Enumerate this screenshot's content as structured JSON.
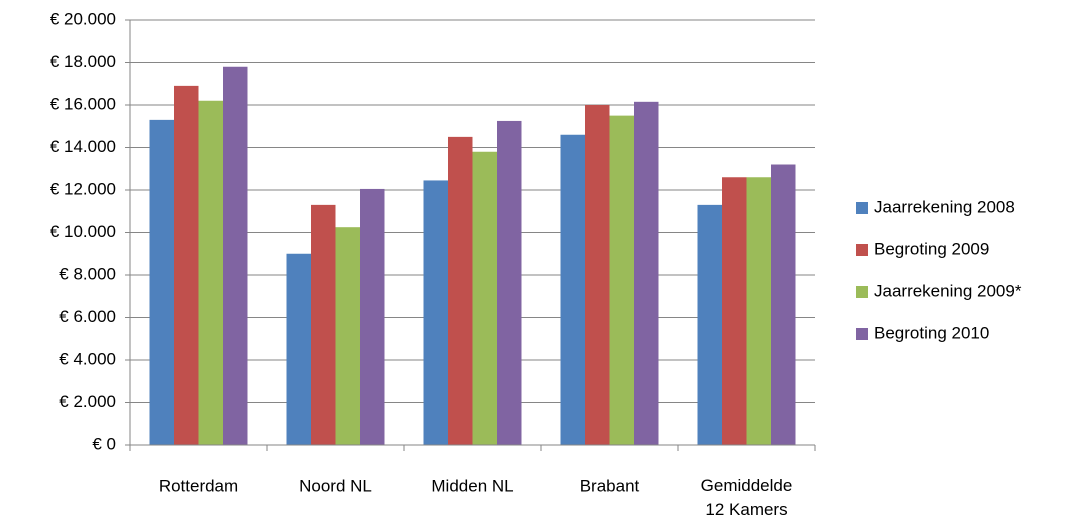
{
  "chart_data": {
    "type": "bar",
    "categories": [
      "Rotterdam",
      "Noord NL",
      "Midden NL",
      "Brabant",
      "Gemiddelde 12 Kamers"
    ],
    "series": [
      {
        "name": "Jaarrekening 2008",
        "color": "#4f81bd",
        "values": [
          15300,
          9000,
          12450,
          14600,
          11300
        ]
      },
      {
        "name": "Begroting 2009",
        "color": "#c0504d",
        "values": [
          16900,
          11300,
          14500,
          16000,
          12600
        ]
      },
      {
        "name": "Jaarrekening 2009*",
        "color": "#9bbb59",
        "values": [
          16200,
          10250,
          13800,
          15500,
          12600
        ]
      },
      {
        "name": "Begroting 2010",
        "color": "#8064a2",
        "values": [
          17800,
          12050,
          15250,
          16150,
          13200
        ]
      }
    ],
    "ylim": [
      0,
      20000
    ],
    "yticks": [
      {
        "value": 0,
        "label": "€ 0"
      },
      {
        "value": 2000,
        "label": "€ 2.000"
      },
      {
        "value": 4000,
        "label": "€ 4.000"
      },
      {
        "value": 6000,
        "label": "€ 6.000"
      },
      {
        "value": 8000,
        "label": "€ 8.000"
      },
      {
        "value": 10000,
        "label": "€ 10.000"
      },
      {
        "value": 12000,
        "label": "€ 12.000"
      },
      {
        "value": 14000,
        "label": "€ 14.000"
      },
      {
        "value": 16000,
        "label": "€ 16.000"
      },
      {
        "value": 18000,
        "label": "€ 18.000"
      },
      {
        "value": 20000,
        "label": "€ 20.000"
      }
    ],
    "grid": true,
    "legend": "right"
  }
}
